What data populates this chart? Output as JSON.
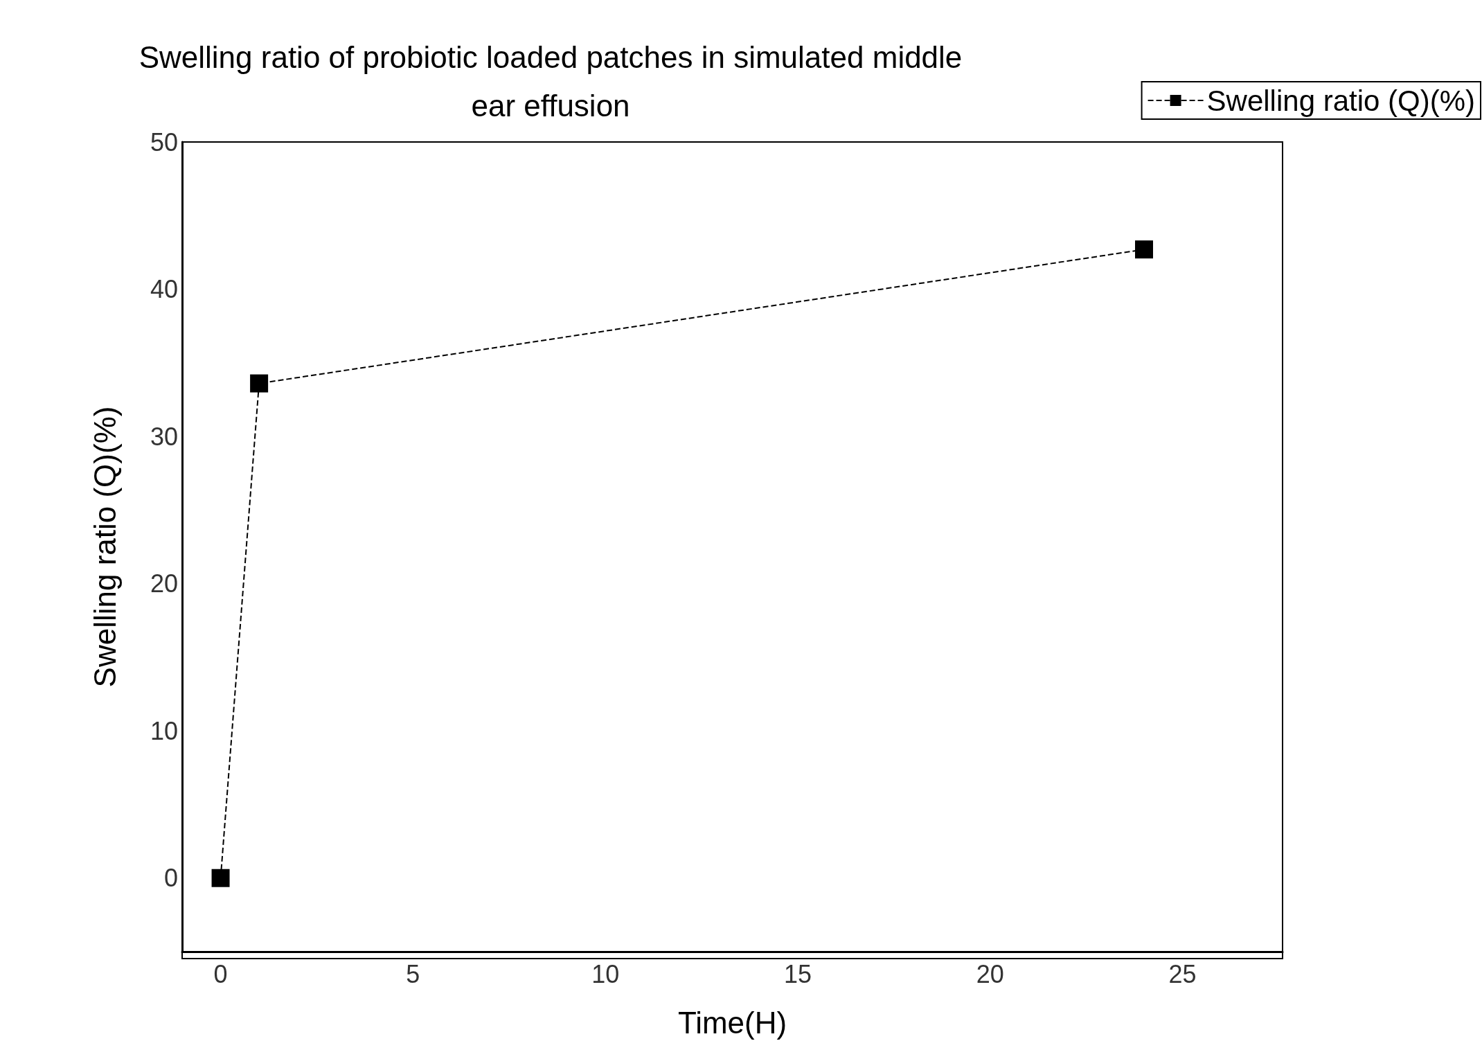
{
  "chart_data": {
    "type": "line",
    "title": "Swelling ratio of probiotic loaded patches in simulated middle\near effusion",
    "xlabel": "Time(H)",
    "ylabel": "Swelling ratio (Q)(%)",
    "x": [
      0,
      1,
      24
    ],
    "series": [
      {
        "name": "Swelling ratio (Q)(%)",
        "color": "#000000",
        "values": [
          0,
          33.6,
          42.7
        ]
      }
    ],
    "xlim": [
      -1,
      27.6
    ],
    "xticks": [
      0,
      5,
      10,
      15,
      20,
      25
    ],
    "ylim": [
      -5,
      50
    ],
    "yticks": [
      0,
      10,
      20,
      30,
      40,
      50
    ],
    "grid": false,
    "legend": "top right",
    "marker": "square",
    "line_style": "dashed"
  }
}
